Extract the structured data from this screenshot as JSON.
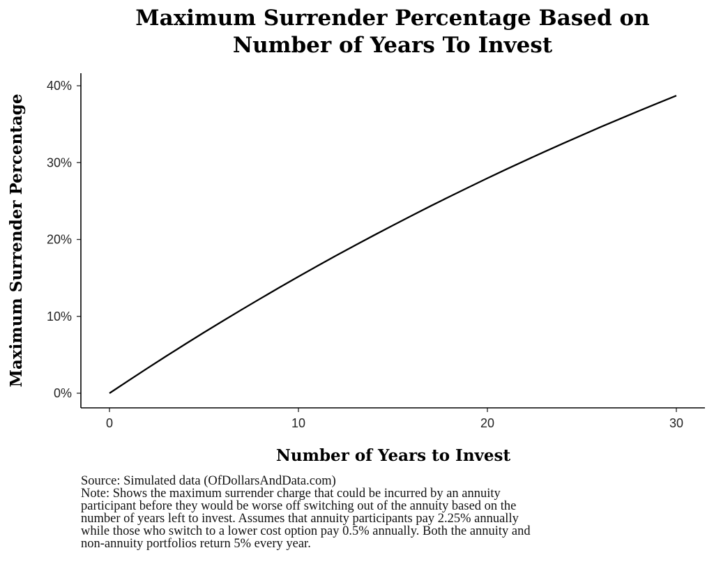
{
  "chart_data": {
    "type": "line",
    "title": "Maximum Surrender Percentage Based on Number of Years To Invest",
    "title_lines": [
      "Maximum Surrender Percentage Based on",
      "Number of Years To Invest"
    ],
    "xlabel": "Number of Years to Invest",
    "ylabel": "Maximum Surrender Percentage",
    "xlim": [
      0,
      30
    ],
    "ylim": [
      0,
      0.4
    ],
    "x_ticks": [
      0,
      10,
      20,
      30
    ],
    "x_tick_labels": [
      "0",
      "10",
      "20",
      "30"
    ],
    "y_ticks": [
      0,
      0.1,
      0.2,
      0.3,
      0.4
    ],
    "y_tick_labels": [
      "0%",
      "10%",
      "20%",
      "30%",
      "40%"
    ],
    "grid": false,
    "legend": "none",
    "line_color": "#000000",
    "series": [
      {
        "x": [
          0,
          1,
          2,
          3,
          4,
          5,
          6,
          7,
          8,
          9,
          10,
          11,
          12,
          13,
          14,
          15,
          16,
          17,
          18,
          19,
          20,
          21,
          22,
          23,
          24,
          25,
          26,
          27,
          28,
          29,
          30
        ],
        "values": [
          0.0,
          0.0163,
          0.0324,
          0.0482,
          0.0637,
          0.079,
          0.094,
          0.1088,
          0.1233,
          0.1376,
          0.1517,
          0.1655,
          0.1791,
          0.1924,
          0.2055,
          0.2184,
          0.2311,
          0.2436,
          0.2558,
          0.2678,
          0.2797,
          0.2913,
          0.3027,
          0.3139,
          0.3249,
          0.3357,
          0.3464,
          0.3568,
          0.3671,
          0.3772,
          0.3871
        ]
      }
    ]
  },
  "caption": {
    "source": "Source: Simulated data (OfDollarsAndData.com)",
    "note_lines": [
      "Note: Shows the maximum surrender charge that could be incurred by an annuity",
      "participant before they would be worse off switching out of the annuity based on the",
      "number of years left to invest. Assumes that annuity participants pay 2.25% annually",
      "while those who switch to a lower cost option pay 0.5% annually. Both the annuity and",
      "non-annuity portfolios return 5% every year."
    ]
  }
}
